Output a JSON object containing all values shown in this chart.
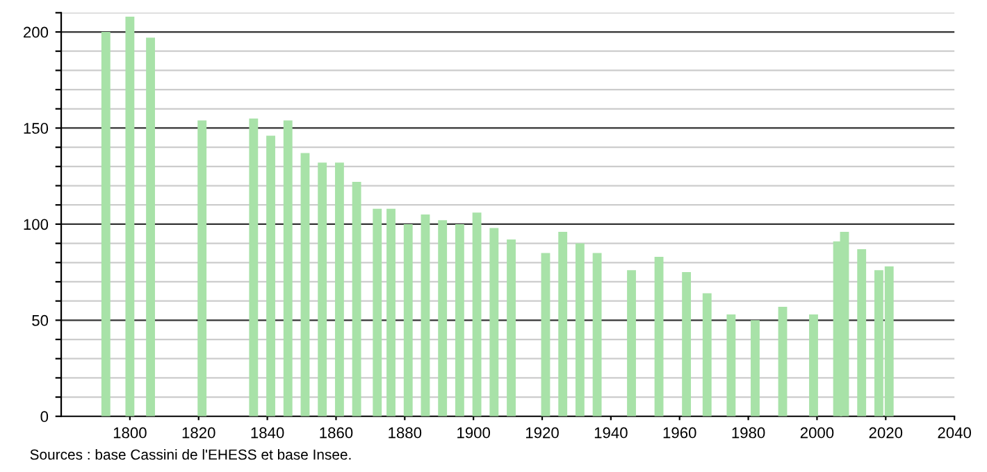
{
  "chart_data": {
    "type": "bar",
    "x": [
      1793,
      1800,
      1806,
      1821,
      1836,
      1841,
      1846,
      1851,
      1856,
      1861,
      1866,
      1872,
      1876,
      1881,
      1886,
      1891,
      1896,
      1901,
      1906,
      1911,
      1921,
      1926,
      1931,
      1936,
      1946,
      1954,
      1962,
      1968,
      1975,
      1982,
      1990,
      1999,
      2006,
      2008,
      2013,
      2018,
      2021
    ],
    "values": [
      200,
      208,
      197,
      154,
      155,
      146,
      154,
      137,
      132,
      132,
      122,
      108,
      108,
      100,
      105,
      102,
      100,
      106,
      98,
      92,
      85,
      96,
      90,
      85,
      76,
      83,
      75,
      64,
      53,
      50,
      57,
      53,
      91,
      96,
      87,
      76,
      78
    ],
    "color": "#a8e2a8",
    "xlim": [
      1780,
      2040
    ],
    "xticks": [
      1800,
      1820,
      1840,
      1860,
      1880,
      1900,
      1920,
      1940,
      1960,
      1980,
      2000,
      2020,
      2040
    ],
    "ylim": [
      0,
      210
    ],
    "yticks": [
      0,
      {
        "value": 10,
        "label": null
      },
      {
        "value": 20,
        "label": null
      },
      {
        "value": 30,
        "label": null
      },
      {
        "value": 40,
        "label": null
      },
      50,
      {
        "value": 60,
        "label": null
      },
      {
        "value": 70,
        "label": null
      },
      {
        "value": 80,
        "label": null
      },
      {
        "value": 90,
        "label": null
      },
      100,
      {
        "value": 110,
        "label": null
      },
      {
        "value": 120,
        "label": null
      },
      {
        "value": 130,
        "label": null
      },
      {
        "value": 140,
        "label": null
      },
      150,
      {
        "value": 160,
        "label": null
      },
      {
        "value": 170,
        "label": null
      },
      {
        "value": 180,
        "label": null
      },
      {
        "value": 190,
        "label": null
      },
      200,
      {
        "value": 210,
        "label": null
      }
    ],
    "grid": "y",
    "annotations": [
      "Sources : base Cassini de l'EHESS et base Insee."
    ]
  }
}
